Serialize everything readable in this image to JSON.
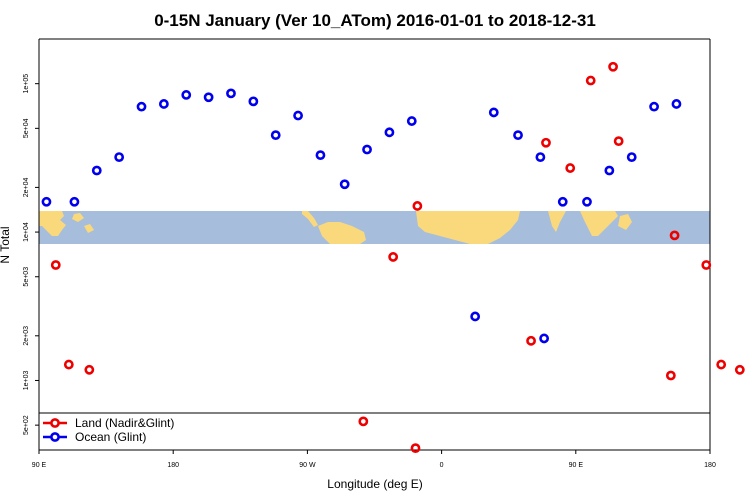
{
  "chart_data": {
    "type": "scatter",
    "title": "0-15N January (Ver 10_ATom)   2016-01-01 to 2018-12-31",
    "xlabel": "Longitude (deg E)",
    "ylabel": "N Total",
    "x_scale": "linear",
    "y_scale": "log",
    "xlim": [
      90,
      450
    ],
    "ylim": [
      340,
      200000
    ],
    "x_ticks": [
      {
        "value": 90,
        "label": "90 E"
      },
      {
        "value": 180,
        "label": "180"
      },
      {
        "value": 270,
        "label": "90 W"
      },
      {
        "value": 360,
        "label": "0"
      },
      {
        "value": 450,
        "label": "90 E"
      },
      {
        "value": 540,
        "label": "180"
      }
    ],
    "y_ticks": [
      {
        "value": 500,
        "label": "5e+02"
      },
      {
        "value": 1000,
        "label": "1e+03"
      },
      {
        "value": 2000,
        "label": "2e+03"
      },
      {
        "value": 5000,
        "label": "5e+03"
      },
      {
        "value": 10000,
        "label": "1e+04"
      },
      {
        "value": 20000,
        "label": "2e+04"
      },
      {
        "value": 50000,
        "label": "5e+04"
      },
      {
        "value": 100000,
        "label": "1e+05"
      }
    ],
    "legend": {
      "position": "bottom-left"
    },
    "series": [
      {
        "name": "Land (Nadir&Glint)",
        "color": "#ee0000",
        "points": [
          {
            "x": 99,
            "y": 6000
          },
          {
            "x": 106,
            "y": 1280
          },
          {
            "x": 117,
            "y": 1180
          },
          {
            "x": 264,
            "y": 530
          },
          {
            "x": 280,
            "y": 6800
          },
          {
            "x": 293,
            "y": 15000
          },
          {
            "x": 292,
            "y": 350
          },
          {
            "x": 354,
            "y": 1850
          },
          {
            "x": 362,
            "y": 40000
          },
          {
            "x": 375,
            "y": 27000
          },
          {
            "x": 386,
            "y": 105000
          },
          {
            "x": 398,
            "y": 130000
          },
          {
            "x": 401,
            "y": 41000
          },
          {
            "x": 429,
            "y": 1080
          },
          {
            "x": 431,
            "y": 9500
          },
          {
            "x": 448,
            "y": 6000
          },
          {
            "x": 456,
            "y": 1280
          },
          {
            "x": 466,
            "y": 1180
          }
        ]
      },
      {
        "name": "Ocean (Glint)",
        "color": "#0000ee",
        "points": [
          {
            "x": 94,
            "y": 16000
          },
          {
            "x": 109,
            "y": 16000
          },
          {
            "x": 121,
            "y": 26000
          },
          {
            "x": 133,
            "y": 32000
          },
          {
            "x": 145,
            "y": 70000
          },
          {
            "x": 157,
            "y": 73000
          },
          {
            "x": 169,
            "y": 84000
          },
          {
            "x": 181,
            "y": 81000
          },
          {
            "x": 193,
            "y": 86000
          },
          {
            "x": 205,
            "y": 76000
          },
          {
            "x": 217,
            "y": 45000
          },
          {
            "x": 229,
            "y": 61000
          },
          {
            "x": 241,
            "y": 33000
          },
          {
            "x": 254,
            "y": 21000
          },
          {
            "x": 266,
            "y": 36000
          },
          {
            "x": 278,
            "y": 47000
          },
          {
            "x": 290,
            "y": 56000
          },
          {
            "x": 361,
            "y": 1920
          },
          {
            "x": 324,
            "y": 2700
          },
          {
            "x": 334,
            "y": 64000
          },
          {
            "x": 347,
            "y": 45000
          },
          {
            "x": 359,
            "y": 32000
          },
          {
            "x": 371,
            "y": 16000
          },
          {
            "x": 384,
            "y": 16000
          },
          {
            "x": 396,
            "y": 26000
          },
          {
            "x": 408,
            "y": 32000
          },
          {
            "x": 420,
            "y": 70000
          },
          {
            "x": 432,
            "y": 73000
          }
        ]
      }
    ]
  }
}
